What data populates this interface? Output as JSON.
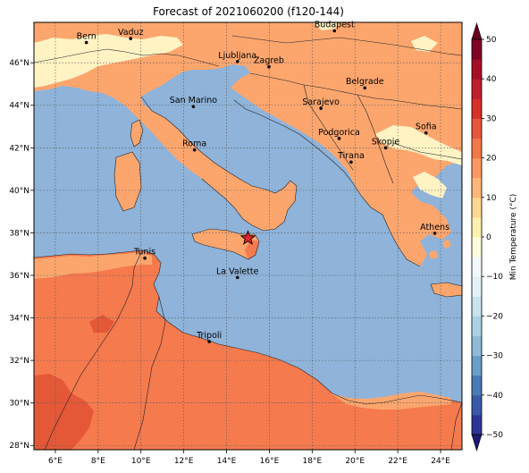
{
  "title": "Forecast of 2021060200 (f120-144)",
  "lon_ticks": [
    {
      "deg": 6,
      "label": "6°E"
    },
    {
      "deg": 8,
      "label": "8°E"
    },
    {
      "deg": 10,
      "label": "10°E"
    },
    {
      "deg": 12,
      "label": "12°E"
    },
    {
      "deg": 14,
      "label": "14°E"
    },
    {
      "deg": 16,
      "label": "16°E"
    },
    {
      "deg": 18,
      "label": "18°E"
    },
    {
      "deg": 20,
      "label": "20°E"
    },
    {
      "deg": 22,
      "label": "22°E"
    },
    {
      "deg": 24,
      "label": "24°E"
    }
  ],
  "lat_ticks": [
    {
      "deg": 28,
      "label": "28°N"
    },
    {
      "deg": 30,
      "label": "30°N"
    },
    {
      "deg": 32,
      "label": "32°N"
    },
    {
      "deg": 34,
      "label": "34°N"
    },
    {
      "deg": 36,
      "label": "36°N"
    },
    {
      "deg": 38,
      "label": "38°N"
    },
    {
      "deg": 40,
      "label": "40°N"
    },
    {
      "deg": 42,
      "label": "42°N"
    },
    {
      "deg": 44,
      "label": "44°N"
    },
    {
      "deg": 46,
      "label": "46°N"
    }
  ],
  "extent": {
    "lon_min": 5,
    "lon_max": 25,
    "lat_min": 27.8,
    "lat_max": 47.9
  },
  "cities": [
    {
      "name": "Bern",
      "lon": 7.45,
      "lat": 46.95
    },
    {
      "name": "Vaduz",
      "lon": 9.52,
      "lat": 47.14
    },
    {
      "name": "Budapest",
      "lon": 19.04,
      "lat": 47.5
    },
    {
      "name": "Ljubljana",
      "lon": 14.51,
      "lat": 46.06
    },
    {
      "name": "Zagreb",
      "lon": 15.98,
      "lat": 45.81
    },
    {
      "name": "Belgrade",
      "lon": 20.46,
      "lat": 44.82
    },
    {
      "name": "San Marino",
      "lon": 12.45,
      "lat": 43.94
    },
    {
      "name": "Sarajevo",
      "lon": 18.41,
      "lat": 43.86
    },
    {
      "name": "Sofia",
      "lon": 23.32,
      "lat": 42.7
    },
    {
      "name": "Podgorica",
      "lon": 19.26,
      "lat": 42.44
    },
    {
      "name": "Skopje",
      "lon": 21.43,
      "lat": 42.0
    },
    {
      "name": "Roma",
      "lon": 12.5,
      "lat": 41.9
    },
    {
      "name": "Tirana",
      "lon": 19.82,
      "lat": 41.33
    },
    {
      "name": "Athens",
      "lon": 23.73,
      "lat": 37.98
    },
    {
      "name": "Tunis",
      "lon": 10.18,
      "lat": 36.81
    },
    {
      "name": "La Valette",
      "lon": 14.51,
      "lat": 35.9
    },
    {
      "name": "Tripoli",
      "lon": 13.19,
      "lat": 32.89
    }
  ],
  "marker": {
    "lon": 15.0,
    "lat": 37.75,
    "color": "#e8212a",
    "icon": "star-icon"
  },
  "colorbar": {
    "label": "Min Temperature (°C)",
    "levels": [
      -50,
      -45,
      -40,
      -35,
      -30,
      -25,
      -20,
      -15,
      -10,
      -5,
      0,
      5,
      10,
      15,
      20,
      25,
      30,
      35,
      40,
      45,
      50
    ],
    "tick_labels": [
      "50",
      "40",
      "30",
      "20",
      "10",
      "0",
      "−10",
      "−20",
      "−30",
      "−40",
      "−50"
    ],
    "colors": [
      "#2b3594",
      "#3a5aa8",
      "#4a79b8",
      "#6a9dc9",
      "#8fbad8",
      "#abd0e4",
      "#c9e3ef",
      "#e2f1f7",
      "#f3fafc",
      "#fffbdc",
      "#fff0b0",
      "#fed890",
      "#fdb77a",
      "#fa9863",
      "#f17849",
      "#e5573a",
      "#d73027",
      "#bf1e2d",
      "#a50f26",
      "#800026"
    ]
  },
  "field_colors": {
    "sea": "#8fb3d9",
    "land_15_20": "#fca66e",
    "land_20_25": "#f57a4e",
    "land_25_30": "#e45838",
    "land_10_15": "#fff3c4",
    "land_5_10": "#fffbdc"
  }
}
